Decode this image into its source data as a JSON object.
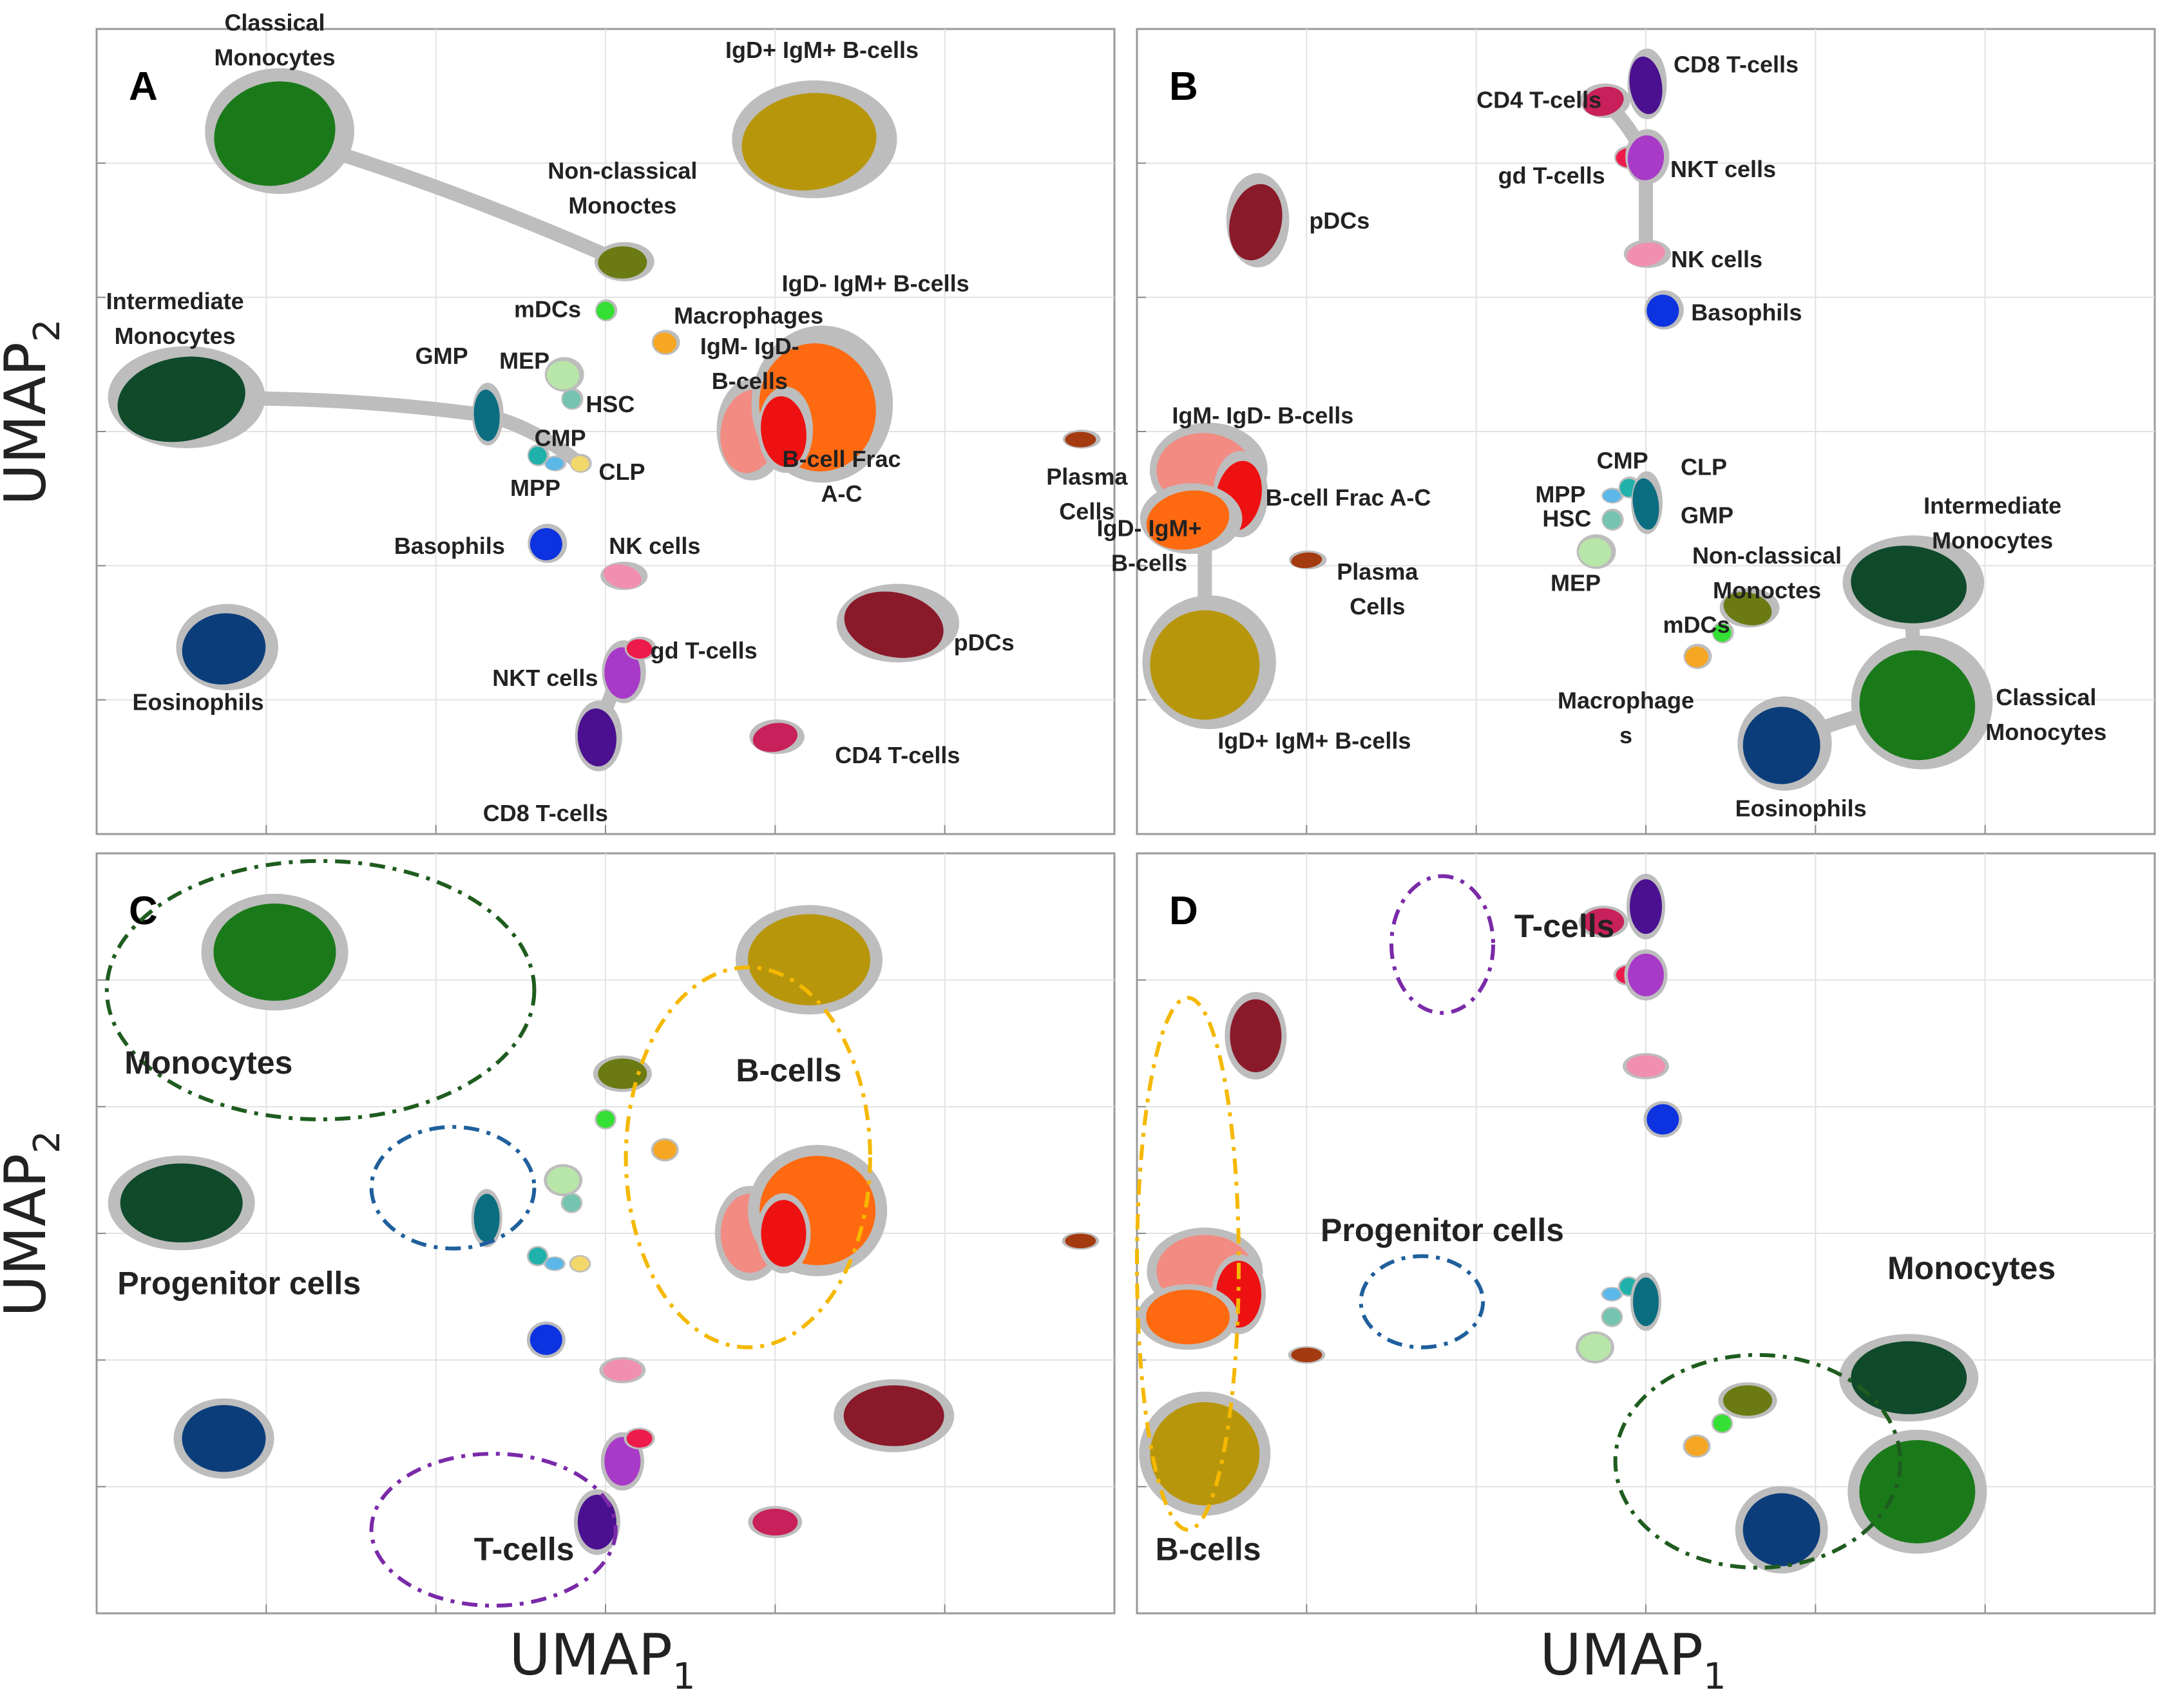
{
  "axes": {
    "xlabel": "UMAP",
    "xlabel_sub": "1",
    "ylabel": "UMAP",
    "ylabel_sub": "2"
  },
  "chart_data": [
    {
      "type": "scatter",
      "panel": "A",
      "clusters": [
        {
          "label": "Classical Monocytes",
          "x": 2.1,
          "y": 8.7,
          "color": "#1a7a1a"
        },
        {
          "label": "IgD+ IgM+ B-cells",
          "x": 8.4,
          "y": 8.6,
          "color": "#b8960c"
        },
        {
          "label": "Non-classical Monoctes",
          "x": 6.2,
          "y": 7.1,
          "color": "#6b7a12"
        },
        {
          "label": "mDCs",
          "x": 6.0,
          "y": 6.5,
          "color": "#33e033"
        },
        {
          "label": "Macrophages",
          "x": 6.7,
          "y": 6.1,
          "color": "#f5a623"
        },
        {
          "label": "Intermediate Monocytes",
          "x": 1.0,
          "y": 5.4,
          "color": "#0f4a2a"
        },
        {
          "label": "GMP",
          "x": 4.6,
          "y": 5.2,
          "color": "#0b6d80"
        },
        {
          "label": "MEP",
          "x": 5.5,
          "y": 5.7,
          "color": "#b8e6a8"
        },
        {
          "label": "HSC",
          "x": 5.6,
          "y": 5.4,
          "color": "#74c4b0"
        },
        {
          "label": "CMP",
          "x": 5.2,
          "y": 4.7,
          "color": "#20b2aa"
        },
        {
          "label": "MPP",
          "x": 5.4,
          "y": 4.6,
          "color": "#5bb8e8"
        },
        {
          "label": "CLP",
          "x": 5.7,
          "y": 4.6,
          "color": "#f2d86b"
        },
        {
          "label": "IgM- IgD- B-cells",
          "x": 7.7,
          "y": 5.0,
          "color": "#f28b82"
        },
        {
          "label": "IgD- IgM+ B-cells",
          "x": 8.5,
          "y": 5.3,
          "color": "#ff6a10"
        },
        {
          "label": "B-cell Frac A-C",
          "x": 8.1,
          "y": 5.0,
          "color": "#ee1111"
        },
        {
          "label": "Plasma Cells",
          "x": 11.6,
          "y": 4.9,
          "color": "#a43a10"
        },
        {
          "label": "Basophils",
          "x": 5.3,
          "y": 3.6,
          "color": "#0d33e0"
        },
        {
          "label": "NK cells",
          "x": 6.2,
          "y": 3.2,
          "color": "#f08fb0"
        },
        {
          "label": "Eosinophils",
          "x": 1.5,
          "y": 2.3,
          "color": "#0b3d7a"
        },
        {
          "label": "NKT cells",
          "x": 6.2,
          "y": 2.0,
          "color": "#a83ac8"
        },
        {
          "label": "gd T-cells",
          "x": 6.4,
          "y": 2.3,
          "color": "#ee1a4a"
        },
        {
          "label": "pDCs",
          "x": 9.4,
          "y": 2.6,
          "color": "#8a1a2a"
        },
        {
          "label": "CD4 T-cells",
          "x": 8.0,
          "y": 1.2,
          "color": "#c8205a"
        },
        {
          "label": "CD8 T-cells",
          "x": 5.9,
          "y": 1.2,
          "color": "#4a1090"
        }
      ]
    },
    {
      "type": "scatter",
      "panel": "B",
      "clusters": [
        {
          "label": "CD4 T-cells",
          "x": 5.5,
          "y": 9.1,
          "color": "#c8205a"
        },
        {
          "label": "CD8 T-cells",
          "x": 6.0,
          "y": 9.3,
          "color": "#4a1090"
        },
        {
          "label": "gd T-cells",
          "x": 5.8,
          "y": 8.4,
          "color": "#ee1a4a"
        },
        {
          "label": "NKT cells",
          "x": 6.0,
          "y": 8.4,
          "color": "#a83ac8"
        },
        {
          "label": "pDCs",
          "x": 1.4,
          "y": 7.6,
          "color": "#8a1a2a"
        },
        {
          "label": "NK cells",
          "x": 6.0,
          "y": 7.2,
          "color": "#f08fb0"
        },
        {
          "label": "Basophils",
          "x": 6.2,
          "y": 6.5,
          "color": "#0d33e0"
        },
        {
          "label": "IgM- IgD- B-cells",
          "x": 0.8,
          "y": 4.5,
          "color": "#f28b82"
        },
        {
          "label": "B-cell Frac A-C",
          "x": 1.2,
          "y": 4.2,
          "color": "#ee1111"
        },
        {
          "label": "IgD- IgM+ B-cells",
          "x": 0.6,
          "y": 3.9,
          "color": "#ff6a10"
        },
        {
          "label": "Plasma Cells",
          "x": 2.0,
          "y": 3.4,
          "color": "#a43a10"
        },
        {
          "label": "MPP",
          "x": 5.6,
          "y": 4.2,
          "color": "#5bb8e8"
        },
        {
          "label": "CMP",
          "x": 5.8,
          "y": 4.3,
          "color": "#20b2aa"
        },
        {
          "label": "CLP",
          "x": 6.0,
          "y": 4.3,
          "color": "#f2d86b"
        },
        {
          "label": "GMP",
          "x": 6.0,
          "y": 4.1,
          "color": "#0b6d80"
        },
        {
          "label": "HSC",
          "x": 5.6,
          "y": 3.9,
          "color": "#74c4b0"
        },
        {
          "label": "MEP",
          "x": 5.4,
          "y": 3.5,
          "color": "#b8e6a8"
        },
        {
          "label": "Non-classical Monoctes",
          "x": 7.2,
          "y": 2.8,
          "color": "#6b7a12"
        },
        {
          "label": "mDCs",
          "x": 6.9,
          "y": 2.5,
          "color": "#33e033"
        },
        {
          "label": "Macrophages",
          "x": 6.6,
          "y": 2.2,
          "color": "#f5a623"
        },
        {
          "label": "Intermediate Monocytes",
          "x": 9.1,
          "y": 3.1,
          "color": "#0f4a2a"
        },
        {
          "label": "Classical Monocytes",
          "x": 9.2,
          "y": 1.6,
          "color": "#1a7a1a"
        },
        {
          "label": "Eosinophils",
          "x": 7.6,
          "y": 1.1,
          "color": "#0b3d7a"
        },
        {
          "label": "IgD+ IgM+ B-cells",
          "x": 0.8,
          "y": 2.1,
          "color": "#b8960c"
        }
      ]
    },
    {
      "type": "scatter",
      "panel": "C",
      "groups": [
        {
          "label": "Monocytes",
          "color": "#1f5c1f"
        },
        {
          "label": "B-cells",
          "color": "#f5b800"
        },
        {
          "label": "Progenitor cells",
          "color": "#1f5f9c"
        },
        {
          "label": "T-cells",
          "color": "#7a2aa8"
        }
      ]
    },
    {
      "type": "scatter",
      "panel": "D",
      "groups": [
        {
          "label": "T-cells",
          "color": "#7a2aa8"
        },
        {
          "label": "Progenitor cells",
          "color": "#1f5f9c"
        },
        {
          "label": "Monocytes",
          "color": "#1f5c1f"
        },
        {
          "label": "B-cells",
          "color": "#f5b800"
        }
      ]
    }
  ]
}
